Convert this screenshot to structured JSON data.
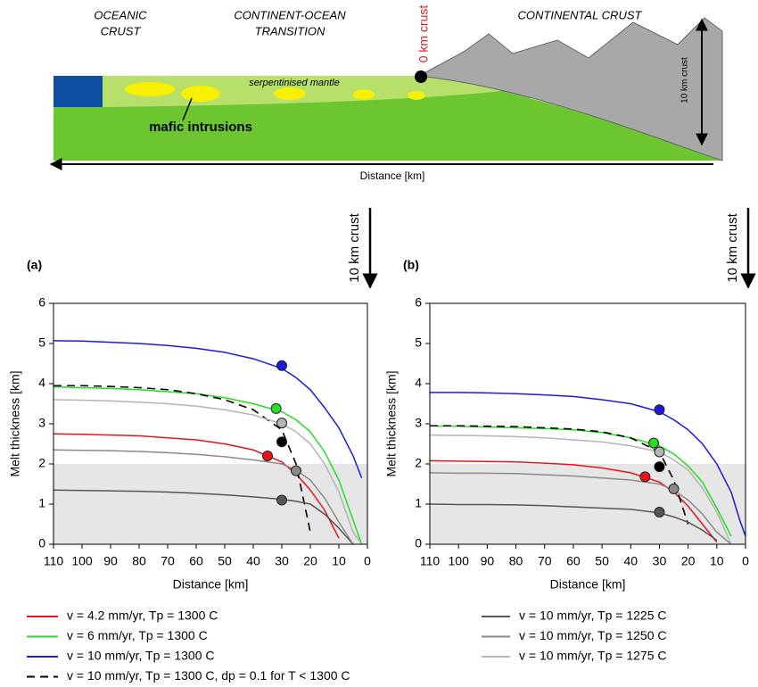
{
  "diagram": {
    "oceanic": [
      "OCEANIC",
      "CRUST"
    ],
    "transition": [
      "CONTINENT-OCEAN",
      "TRANSITION"
    ],
    "zero_crust": "0 km crust",
    "continental": "CONTINENTAL CRUST",
    "ten_crust": "10 km crust",
    "serpentinised": "serpentinised mantle",
    "mafic": "mafic intrusions",
    "distance": "Distance [km]"
  },
  "chart_data": [
    {
      "type": "line",
      "panel_label": "(a)",
      "annotation": "10 km crust",
      "xlabel": "Distance [km]",
      "ylabel": "Melt thickness [km]",
      "xlim": [
        110,
        0
      ],
      "ylim": [
        0,
        6
      ],
      "xticks": [
        110,
        100,
        90,
        80,
        70,
        60,
        50,
        40,
        30,
        20,
        10,
        0
      ],
      "yticks": [
        0,
        1,
        2,
        3,
        4,
        5,
        6
      ],
      "shade": [
        0,
        2
      ],
      "x": [
        110,
        100,
        90,
        80,
        70,
        60,
        50,
        40,
        30,
        25,
        20,
        15,
        10,
        5,
        2,
        0
      ],
      "series": [
        {
          "name": "v = 4.2 mm/yr, Tp = 1300 C",
          "color": "#e8141c",
          "values": [
            2.75,
            2.74,
            2.72,
            2.7,
            2.65,
            2.6,
            2.5,
            2.35,
            2.05,
            1.75,
            1.35,
            0.85,
            0.15,
            null,
            null,
            null
          ]
        },
        {
          "name": "v = 6 mm/yr, Tp = 1300 C",
          "color": "#22e022",
          "values": [
            3.92,
            3.9,
            3.88,
            3.85,
            3.8,
            3.75,
            3.65,
            3.5,
            3.3,
            3.1,
            2.8,
            2.3,
            1.6,
            0.6,
            0,
            null
          ]
        },
        {
          "name": "v = 10 mm/yr, Tp = 1300 C",
          "color": "#1a1ae0",
          "values": [
            5.07,
            5.06,
            5.03,
            5.0,
            4.95,
            4.88,
            4.78,
            4.62,
            4.38,
            4.15,
            3.85,
            3.4,
            2.9,
            2.2,
            1.65,
            null
          ]
        },
        {
          "name": "v = 10 mm/yr, Tp = 1300 C, dp = 0.1 for T < 1300 C",
          "color": "#000000",
          "dash": true,
          "values": [
            3.95,
            3.95,
            3.93,
            3.9,
            3.85,
            3.75,
            3.6,
            3.35,
            2.85,
            2.0,
            0.3,
            null,
            null,
            null,
            null,
            null
          ]
        },
        {
          "name": "v = 10 mm/yr, Tp = 1225 C",
          "color": "#555555",
          "values": [
            1.35,
            1.34,
            1.33,
            1.32,
            1.3,
            1.27,
            1.23,
            1.18,
            1.12,
            1.07,
            1.0,
            0.75,
            0.4,
            0,
            null,
            null
          ]
        },
        {
          "name": "v = 10 mm/yr, Tp = 1250 C",
          "color": "#8a8a8a",
          "values": [
            2.35,
            2.34,
            2.33,
            2.31,
            2.28,
            2.24,
            2.18,
            2.1,
            2.0,
            1.85,
            1.6,
            1.15,
            0.55,
            0,
            null,
            null
          ]
        },
        {
          "name": "v = 10 mm/yr, Tp = 1275 C",
          "color": "#b4b4b4",
          "values": [
            3.6,
            3.59,
            3.57,
            3.54,
            3.5,
            3.44,
            3.35,
            3.22,
            3.0,
            2.8,
            2.5,
            2.0,
            1.3,
            0.3,
            0,
            null
          ]
        }
      ],
      "markers": {
        "x": [
          30,
          32,
          30,
          30,
          35,
          25,
          30
        ],
        "y": [
          4.45,
          3.38,
          3.02,
          2.55,
          2.2,
          1.83,
          1.1
        ],
        "colors": [
          "#1a1ae0",
          "#22e022",
          "#b4b4b4",
          "#000000",
          "#e8141c",
          "#8a8a8a",
          "#555555"
        ]
      }
    },
    {
      "type": "line",
      "panel_label": "(b)",
      "annotation": "10 km crust",
      "xlabel": "Distance [km]",
      "ylabel": "Melt thickness [km]",
      "xlim": [
        110,
        0
      ],
      "ylim": [
        0,
        6
      ],
      "xticks": [
        110,
        100,
        90,
        80,
        70,
        60,
        50,
        40,
        30,
        20,
        10,
        0
      ],
      "yticks": [
        0,
        1,
        2,
        3,
        4,
        5,
        6
      ],
      "shade": [
        0,
        2
      ],
      "x": [
        110,
        100,
        90,
        80,
        70,
        60,
        50,
        40,
        30,
        25,
        20,
        15,
        10,
        5,
        2,
        0
      ],
      "series": [
        {
          "color": "#e8141c",
          "values": [
            2.08,
            2.07,
            2.06,
            2.05,
            2.02,
            1.98,
            1.9,
            1.78,
            1.55,
            1.3,
            0.95,
            0.5,
            0.05,
            null,
            null,
            null
          ]
        },
        {
          "color": "#22e022",
          "values": [
            2.95,
            2.94,
            2.92,
            2.9,
            2.88,
            2.85,
            2.78,
            2.65,
            2.45,
            2.25,
            1.95,
            1.55,
            0.9,
            0.2,
            null,
            null
          ]
        },
        {
          "color": "#1a1ae0",
          "values": [
            3.78,
            3.78,
            3.77,
            3.75,
            3.72,
            3.68,
            3.6,
            3.5,
            3.3,
            3.1,
            2.85,
            2.5,
            2.0,
            1.3,
            0.6,
            0.2
          ]
        },
        {
          "color": "#000000",
          "dash": true,
          "values": [
            2.95,
            2.95,
            2.94,
            2.93,
            2.9,
            2.87,
            2.8,
            2.65,
            2.3,
            1.6,
            0.5,
            null,
            null,
            null,
            null,
            null
          ]
        },
        {
          "color": "#555555",
          "values": [
            1.0,
            0.99,
            0.99,
            0.98,
            0.96,
            0.93,
            0.9,
            0.87,
            0.78,
            0.68,
            0.55,
            0.35,
            0.1,
            null,
            null,
            null
          ]
        },
        {
          "color": "#8a8a8a",
          "values": [
            1.78,
            1.77,
            1.77,
            1.76,
            1.73,
            1.7,
            1.65,
            1.6,
            1.5,
            1.35,
            1.1,
            0.75,
            0.3,
            0,
            null,
            null
          ]
        },
        {
          "color": "#b4b4b4",
          "values": [
            2.72,
            2.71,
            2.7,
            2.68,
            2.65,
            2.6,
            2.55,
            2.45,
            2.3,
            2.1,
            1.85,
            1.4,
            0.8,
            0,
            null,
            null
          ]
        }
      ],
      "markers": {
        "x": [
          30,
          32,
          30,
          30,
          35,
          25,
          30
        ],
        "y": [
          3.35,
          2.52,
          2.3,
          1.93,
          1.68,
          1.38,
          0.8
        ],
        "colors": [
          "#1a1ae0",
          "#22e022",
          "#b4b4b4",
          "#000000",
          "#e8141c",
          "#8a8a8a",
          "#555555"
        ]
      }
    }
  ]
}
